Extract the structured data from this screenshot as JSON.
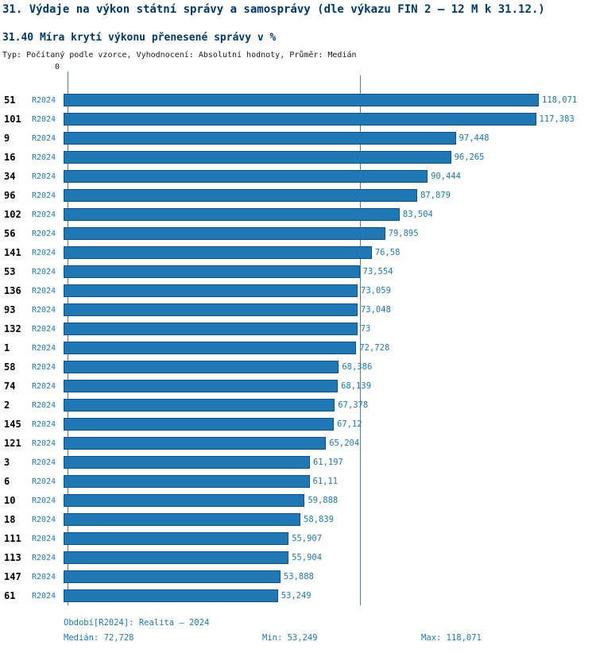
{
  "header": {
    "title": "31. Výdaje na výkon státní správy a samosprávy (dle výkazu FIN 2 – 12 M k 31.12.)",
    "subtitle": "31.40 Míra krytí výkonu přenesené správy v %",
    "meta": "Typ: Počítaný podle vzorce, Vyhodnocení: Absolutní hodnoty, Průměr: Medián"
  },
  "chart_data": {
    "type": "bar",
    "orientation": "horizontal",
    "title": "31.40 Míra krytí výkonu přenesené správy v %",
    "series_label": "R2024",
    "axis_zero_label": "0",
    "grid": false,
    "legend_position": "none",
    "xlim": [
      0,
      130
    ],
    "categories": [
      "51",
      "101",
      "9",
      "16",
      "34",
      "96",
      "102",
      "56",
      "141",
      "53",
      "136",
      "93",
      "132",
      "1",
      "58",
      "74",
      "2",
      "145",
      "121",
      "3",
      "6",
      "10",
      "18",
      "111",
      "113",
      "147",
      "61"
    ],
    "values": [
      118.071,
      117.383,
      97.448,
      96.265,
      90.444,
      87.879,
      83.504,
      79.895,
      76.58,
      73.554,
      73.059,
      73.048,
      73,
      72.728,
      68.386,
      68.139,
      67.378,
      67.12,
      65.204,
      61.197,
      61.11,
      59.888,
      58.839,
      55.907,
      55.904,
      53.888,
      53.249
    ],
    "value_labels": [
      "118,071",
      "117,383",
      "97,448",
      "96,265",
      "90,444",
      "87,879",
      "83,504",
      "79,895",
      "76,58",
      "73,554",
      "73,059",
      "73,048",
      "73",
      "72,728",
      "68,386",
      "68,139",
      "67,378",
      "67,12",
      "65,204",
      "61,197",
      "61,11",
      "59,888",
      "58,839",
      "55,907",
      "55,904",
      "53,888",
      "53,249"
    ],
    "median_value": 72.728,
    "min_value": 53.249,
    "max_value": 118.071
  },
  "footer": {
    "period": "Období[R2024]: Realita – 2024",
    "median": "Medián: 72,728",
    "min": "Min: 53,249",
    "max": "Max: 118,071"
  },
  "colors": {
    "bar": "#1f77b4",
    "bar_border": "#15537e",
    "accent_text": "#1f77b4",
    "title_text": "#003865",
    "axis_line": "#4d7ea8"
  }
}
